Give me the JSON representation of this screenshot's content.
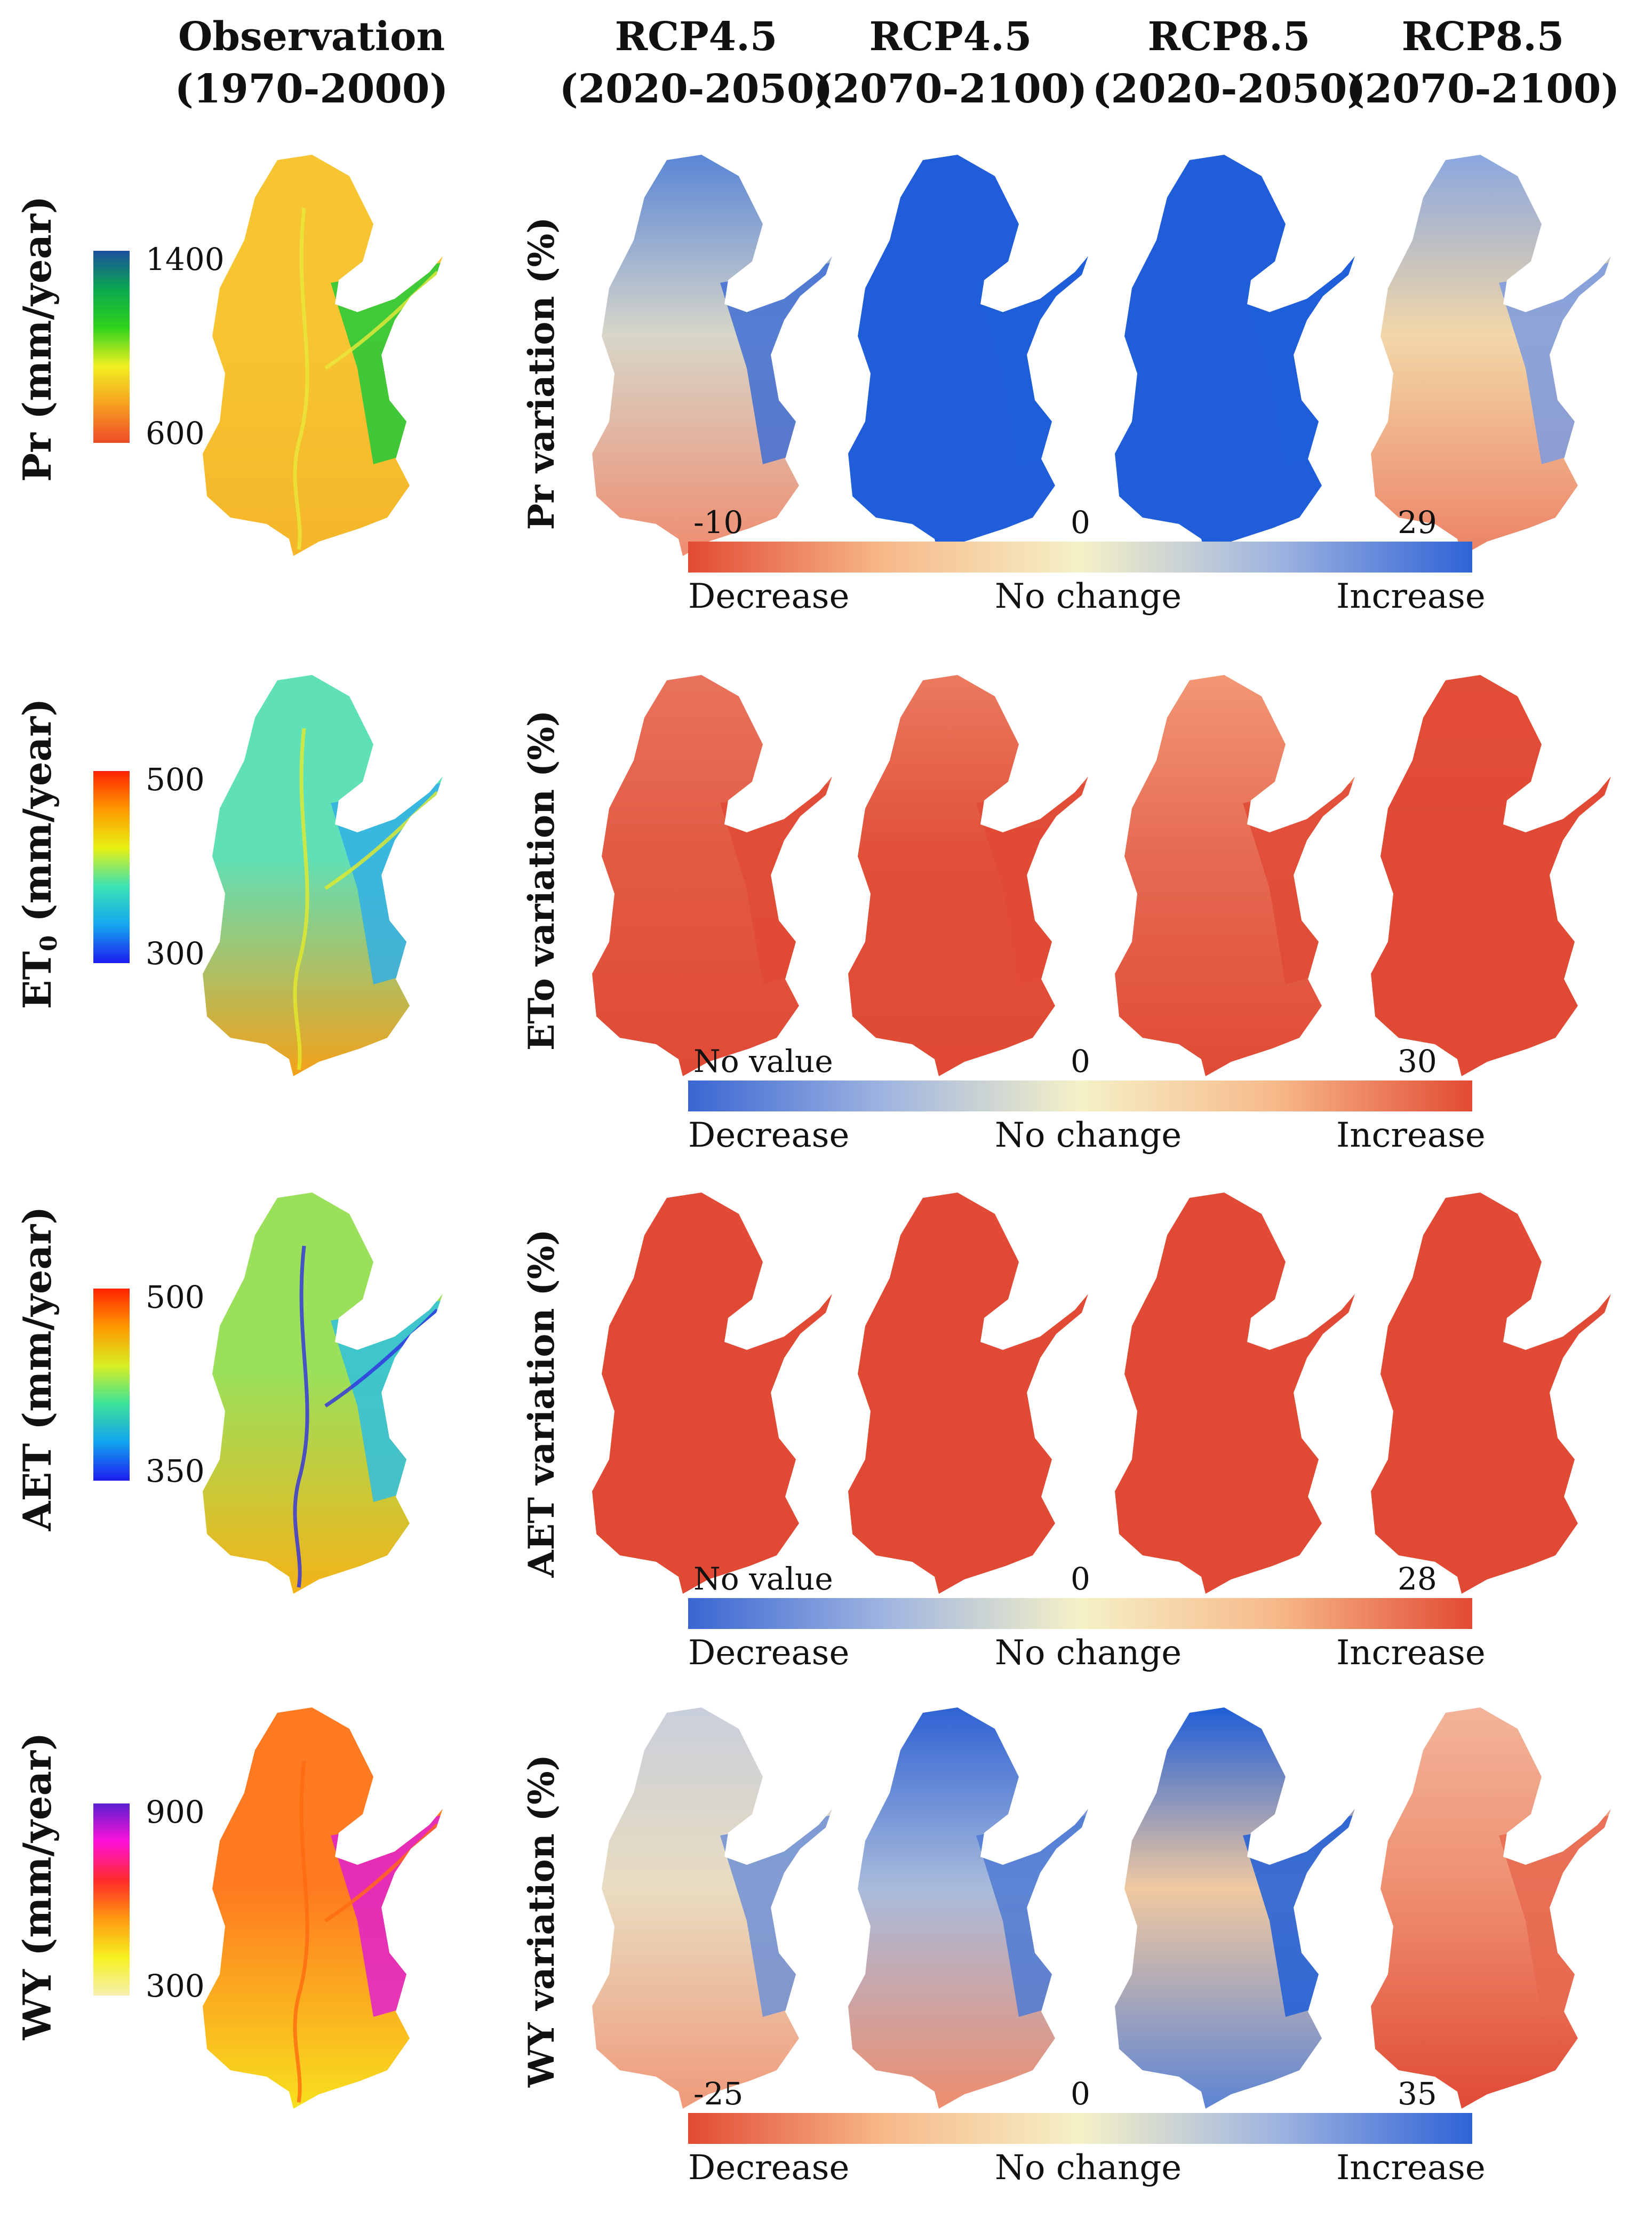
{
  "headers": {
    "observation": {
      "line1": "Observation",
      "line2": "(1970-2000)"
    },
    "scenarios": [
      {
        "line1": "RCP4.5",
        "line2": "(2020-2050)"
      },
      {
        "line1": "RCP4.5",
        "line2": "(2070-2100)"
      },
      {
        "line1": "RCP8.5",
        "line2": "(2020-2050)"
      },
      {
        "line1": "RCP8.5",
        "line2": "(2070-2100)"
      }
    ]
  },
  "rows": [
    {
      "id": "pr",
      "label_main": "Pr (mm/year)",
      "label_sub": "",
      "label_rest": "",
      "variation_label": "Pr variation  (%)",
      "legend": {
        "max": "1400",
        "min": "600",
        "colors": [
          "#1b4fa0",
          "#0aa84f",
          "#2fd31c",
          "#f0f020",
          "#f7a020",
          "#f04a2a"
        ]
      },
      "obs_colors": {
        "north": "#f6c531",
        "east": "#20c93a",
        "south": "#f5b62a",
        "river": "#e8e93a"
      },
      "maps": [
        {
          "north": "#5a86d6",
          "east": "#3f6fd4",
          "south": "#ef8c6f",
          "mid": "#d7d6c9"
        },
        {
          "north": "#1f5ed8",
          "east": "#1f5ed8",
          "south": "#1f5ed8",
          "mid": "#1f5ed8"
        },
        {
          "north": "#1f5ed8",
          "east": "#1f5ed8",
          "south": "#1f5ed8",
          "mid": "#1f5ed8"
        },
        {
          "north": "#8aa7df",
          "east": "#7b9be0",
          "south": "#ec8265",
          "mid": "#f2d7a8"
        }
      ],
      "scale": {
        "min": "-10",
        "mid": "0",
        "max": "29",
        "left": "Decrease",
        "center": "No change",
        "right": "Increase",
        "colors": [
          "#e24a33",
          "#f7b98a",
          "#f5f1c7",
          "#9fb4e0",
          "#2f63d6"
        ]
      }
    },
    {
      "id": "et0",
      "label_main": "ET",
      "label_sub": "0",
      "label_rest": " (mm/year)",
      "variation_label": "ETo variation  (%)",
      "legend": {
        "max": "500",
        "min": "300",
        "colors": [
          "#ff2200",
          "#ff9900",
          "#e7f011",
          "#3be3b5",
          "#15a7f0",
          "#1c1cf0"
        ]
      },
      "obs_colors": {
        "north": "#5fe0b7",
        "east": "#33b0e6",
        "south": "#f4a118",
        "river": "#e4ea2a"
      },
      "maps": [
        {
          "north": "#e9735c",
          "east": "#e04a35",
          "south": "#e04a35",
          "mid": "#e25a43"
        },
        {
          "north": "#ea7a5f",
          "east": "#e04a35",
          "south": "#e04a35",
          "mid": "#e14f38"
        },
        {
          "north": "#f29775",
          "east": "#e04a35",
          "south": "#e04a35",
          "mid": "#e66a52"
        },
        {
          "north": "#e24d37",
          "east": "#e04a35",
          "south": "#e04a35",
          "mid": "#e04a35"
        }
      ],
      "scale": {
        "min": "No value",
        "mid": "0",
        "max": "30",
        "left": "Decrease",
        "center": "No change",
        "right": "Increase",
        "colors": [
          "#3a66d3",
          "#9fb4e0",
          "#f5f1c7",
          "#f7b98a",
          "#e24a33"
        ]
      }
    },
    {
      "id": "aet",
      "label_main": "AET (mm/year)",
      "label_sub": "",
      "label_rest": "",
      "variation_label": "AET variation  (%)",
      "legend": {
        "max": "500",
        "min": "350",
        "colors": [
          "#ff2200",
          "#ff9900",
          "#d9ee22",
          "#3be39a",
          "#12a3f0",
          "#1c1cf0"
        ]
      },
      "obs_colors": {
        "north": "#9be05a",
        "east": "#2fbfe0",
        "south": "#f4b318",
        "river": "#3030e0"
      },
      "maps": [
        {
          "north": "#e14a34",
          "east": "#e04a35",
          "south": "#e04a35",
          "mid": "#e04a35"
        },
        {
          "north": "#e14a34",
          "east": "#e04a35",
          "south": "#e04a35",
          "mid": "#e04a35"
        },
        {
          "north": "#e14a34",
          "east": "#e04a35",
          "south": "#e04a35",
          "mid": "#e04a35"
        },
        {
          "north": "#e14a34",
          "east": "#e04a35",
          "south": "#e04a35",
          "mid": "#e04a35"
        }
      ],
      "scale": {
        "min": "No value",
        "mid": "0",
        "max": "28",
        "left": "Decrease",
        "center": "No change",
        "right": "Increase",
        "colors": [
          "#3a66d3",
          "#9fb4e0",
          "#f5f1c7",
          "#f7b98a",
          "#e24a33"
        ]
      }
    },
    {
      "id": "wy",
      "label_main": "WY (mm/year)",
      "label_sub": "",
      "label_rest": "",
      "variation_label": "WY variation  (%)",
      "legend": {
        "max": "900",
        "min": "300",
        "colors": [
          "#5a1fd0",
          "#ff10d8",
          "#ff2a2a",
          "#ff9a10",
          "#f6f020",
          "#f6f0b0"
        ]
      },
      "obs_colors": {
        "north": "#ff7a20",
        "east": "#e020d0",
        "south": "#f7e01e",
        "river": "#ff6a10"
      },
      "maps": [
        {
          "north": "#c9cfdc",
          "east": "#6f91d6",
          "south": "#ef9a7a",
          "mid": "#e9dcc0"
        },
        {
          "north": "#2f62d3",
          "east": "#4f7bd4",
          "south": "#ee8d6d",
          "mid": "#a9bbdb"
        },
        {
          "north": "#1f5ed8",
          "east": "#1f5ed8",
          "south": "#5d84d4",
          "mid": "#f0c9a0"
        },
        {
          "north": "#f2b49a",
          "east": "#e66a50",
          "south": "#e04a35",
          "mid": "#ef8f70"
        }
      ],
      "scale": {
        "min": "-25",
        "mid": "0",
        "max": "35",
        "left": "Decrease",
        "center": "No change",
        "right": "Increase",
        "colors": [
          "#e24a33",
          "#f7b98a",
          "#f5f1c7",
          "#9fb4e0",
          "#2f63d6"
        ]
      }
    }
  ]
}
